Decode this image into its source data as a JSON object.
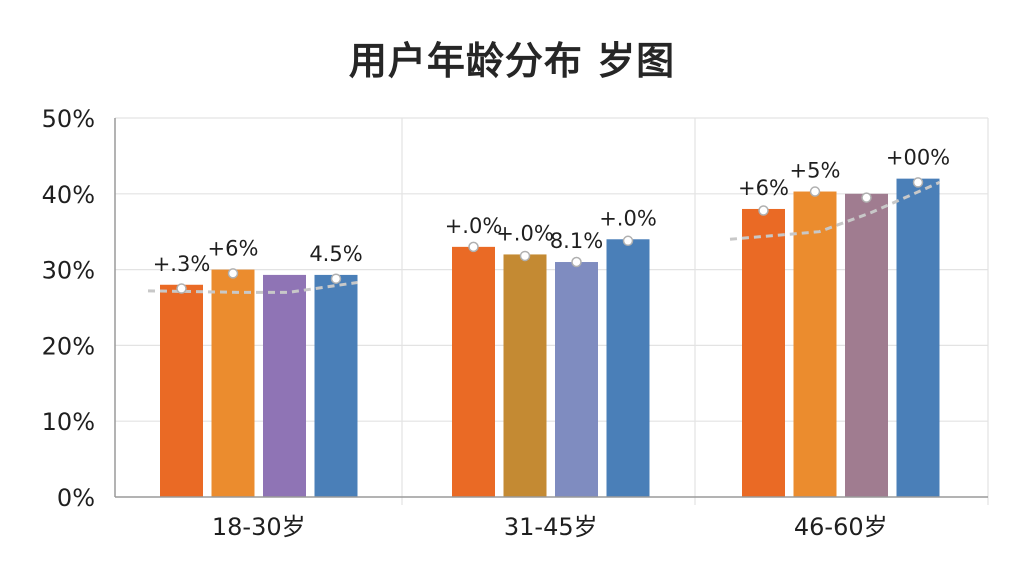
{
  "chart_data": {
    "type": "bar",
    "title": "用户年龄分布 岁图",
    "xlabel": "",
    "ylabel": "",
    "ylim": [
      0,
      50
    ],
    "y_ticks": [
      "0%",
      "10%",
      "20%",
      "30%",
      "40%",
      "50%"
    ],
    "grid": true,
    "legend": "none",
    "categories": [
      "18-30岁",
      "31-45岁",
      "46-60岁"
    ],
    "series": [
      {
        "values": [
          28.0,
          33.0,
          38.0
        ],
        "color": "#ea6a25"
      },
      {
        "values": [
          30.0,
          32.0,
          40.3
        ],
        "color": "#eb8c2e"
      },
      {
        "values": [
          29.3,
          31.0,
          40.0
        ],
        "color": "#9a7fb3"
      },
      {
        "values": [
          29.3,
          34.0,
          42.0
        ],
        "color": "#4a7fb8"
      }
    ],
    "series_colors_by_group": [
      [
        "#ea6a25",
        "#eb8c2e",
        "#8f74b5",
        "#4a7fb8"
      ],
      [
        "#ea6a25",
        "#c48a33",
        "#7f8cc0",
        "#4a7fb8"
      ],
      [
        "#ea6a25",
        "#eb8c2e",
        "#a07c90",
        "#4a7fb8"
      ]
    ],
    "data_labels": [
      [
        "+.3%",
        "+6%",
        "",
        "4.5%"
      ],
      [
        "+.0%",
        "+.0%",
        "8.1%",
        "+.0%"
      ],
      [
        "+6%",
        "+5%",
        "",
        "+00%"
      ]
    ],
    "trend_markers": [
      [
        27.5,
        29.5,
        null,
        28.8
      ],
      [
        33.0,
        31.8,
        31.0,
        33.8
      ],
      [
        37.8,
        40.3,
        39.5,
        41.5
      ]
    ],
    "trend_line": [
      [
        27.2,
        27.0,
        27.0,
        28.3
      ],
      [],
      [
        34.0,
        35.0,
        37.5,
        41.5
      ]
    ],
    "colors": {
      "grid": "#e3e3e3",
      "axis": "#9a9a9a",
      "trend": "#c8c8c8",
      "marker_fill": "#ffffff"
    }
  }
}
